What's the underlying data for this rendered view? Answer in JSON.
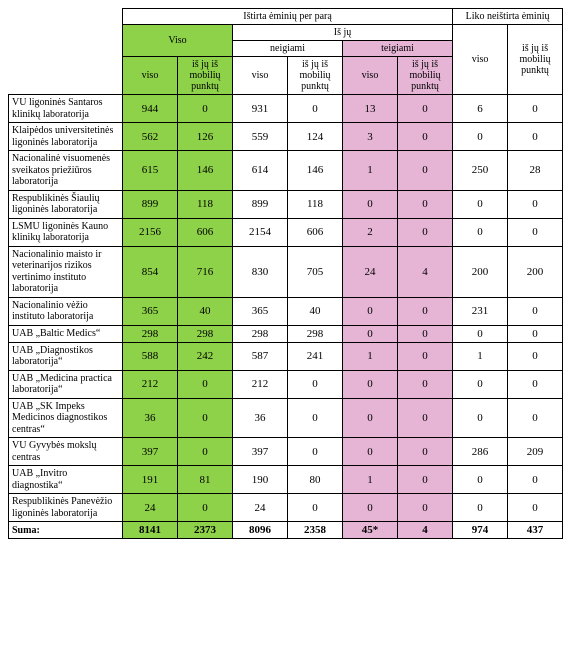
{
  "colors": {
    "green": "#8ed24a",
    "pink": "#e6b5d6",
    "white": "#ffffff",
    "border": "#000000"
  },
  "header": {
    "top_left": "Ištirta ėminių per parą",
    "top_right": "Liko neištirta ėminių",
    "viso": "Viso",
    "is_ju": "Iš jų",
    "neigiami": "neigiami",
    "teigiami": "teigiami",
    "col_viso": "viso",
    "col_mob": "iš jų iš mobilių punktų"
  },
  "rows": [
    {
      "lab": "VU ligoninės Santaros klinikų laboratorija",
      "v": [
        "944",
        "0",
        "931",
        "0",
        "13",
        "0",
        "6",
        "0"
      ]
    },
    {
      "lab": "Klaipėdos universitetinės ligoninės laboratorija",
      "v": [
        "562",
        "126",
        "559",
        "124",
        "3",
        "0",
        "0",
        "0"
      ]
    },
    {
      "lab": "Nacionalinė visuomenės sveikatos priežiūros laboratorija",
      "v": [
        "615",
        "146",
        "614",
        "146",
        "1",
        "0",
        "250",
        "28"
      ]
    },
    {
      "lab": "Respublikinės Šiaulių ligoninės laboratorija",
      "v": [
        "899",
        "118",
        "899",
        "118",
        "0",
        "0",
        "0",
        "0"
      ]
    },
    {
      "lab": "LSMU ligoninės Kauno klinikų laboratorija",
      "v": [
        "2156",
        "606",
        "2154",
        "606",
        "2",
        "0",
        "0",
        "0"
      ]
    },
    {
      "lab": "Nacionalinio maisto ir veterinarijos rizikos vertinimo instituto laboratorija",
      "v": [
        "854",
        "716",
        "830",
        "705",
        "24",
        "4",
        "200",
        "200"
      ]
    },
    {
      "lab": "Nacionalinio vėžio instituto laboratorija",
      "v": [
        "365",
        "40",
        "365",
        "40",
        "0",
        "0",
        "231",
        "0"
      ]
    },
    {
      "lab": "UAB „Baltic Medics“",
      "v": [
        "298",
        "298",
        "298",
        "298",
        "0",
        "0",
        "0",
        "0"
      ]
    },
    {
      "lab": "UAB „Diagnostikos laboratorija“",
      "v": [
        "588",
        "242",
        "587",
        "241",
        "1",
        "0",
        "1",
        "0"
      ]
    },
    {
      "lab": "UAB „Medicina practica laboratorija“",
      "v": [
        "212",
        "0",
        "212",
        "0",
        "0",
        "0",
        "0",
        "0"
      ]
    },
    {
      "lab": "UAB „SK Impeks Medicinos diagnostikos centras“",
      "v": [
        "36",
        "0",
        "36",
        "0",
        "0",
        "0",
        "0",
        "0"
      ]
    },
    {
      "lab": "VU Gyvybės mokslų centras",
      "v": [
        "397",
        "0",
        "397",
        "0",
        "0",
        "0",
        "286",
        "209"
      ]
    },
    {
      "lab": "UAB „Invitro diagnostika“",
      "v": [
        "191",
        "81",
        "190",
        "80",
        "1",
        "0",
        "0",
        "0"
      ]
    },
    {
      "lab": "Respublikinės Panevėžio ligoninės laboratorija",
      "v": [
        "24",
        "0",
        "24",
        "0",
        "0",
        "0",
        "0",
        "0"
      ]
    }
  ],
  "sum": {
    "label": "Suma:",
    "v": [
      "8141",
      "2373",
      "8096",
      "2358",
      "45*",
      "4",
      "974",
      "437"
    ]
  }
}
